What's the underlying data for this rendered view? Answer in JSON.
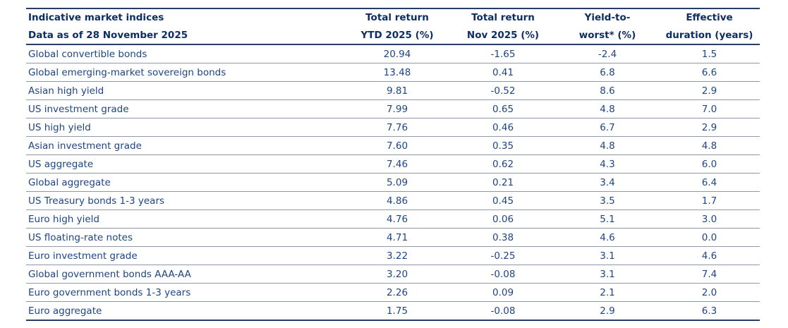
{
  "table": {
    "header": {
      "title_line1": "Indicative market indices",
      "title_line2": "Data as of 28 November 2025",
      "columns": [
        {
          "line1": "Total return",
          "line2": "YTD 2025 (%)"
        },
        {
          "line1": "Total return",
          "line2": "Nov 2025 (%)"
        },
        {
          "line1": "Yield-to-",
          "line2": "worst* (%)"
        },
        {
          "line1": "Effective",
          "line2": "duration (years)"
        }
      ]
    },
    "rows": [
      [
        "Global convertible bonds",
        "20.94",
        "-1.65",
        "-2.4",
        "1.5"
      ],
      [
        "Global emerging-market sovereign bonds",
        "13.48",
        "0.41",
        "6.8",
        "6.6"
      ],
      [
        "Asian high yield",
        "9.81",
        "-0.52",
        "8.6",
        "2.9"
      ],
      [
        "US investment grade",
        "7.99",
        "0.65",
        "4.8",
        "7.0"
      ],
      [
        "US high yield",
        "7.76",
        "0.46",
        "6.7",
        "2.9"
      ],
      [
        "Asian investment grade",
        "7.60",
        "0.35",
        "4.8",
        "4.8"
      ],
      [
        "US aggregate",
        "7.46",
        "0.62",
        "4.3",
        "6.0"
      ],
      [
        "Global aggregate",
        "5.09",
        "0.21",
        "3.4",
        "6.4"
      ],
      [
        "US Treasury bonds 1-3 years",
        "4.86",
        "0.45",
        "3.5",
        "1.7"
      ],
      [
        "Euro high yield",
        "4.76",
        "0.06",
        "5.1",
        "3.0"
      ],
      [
        "US floating-rate notes",
        "4.71",
        "0.38",
        "4.6",
        "0.0"
      ],
      [
        "Euro investment grade",
        "3.22",
        "-0.25",
        "3.1",
        "4.6"
      ],
      [
        "Global government bonds AAA-AA",
        "3.20",
        "-0.08",
        "3.1",
        "7.4"
      ],
      [
        "Euro government bonds 1-3 years",
        "2.26",
        "0.09",
        "2.1",
        "2.0"
      ],
      [
        "Euro aggregate",
        "1.75",
        "-0.08",
        "2.9",
        "6.3"
      ]
    ]
  }
}
